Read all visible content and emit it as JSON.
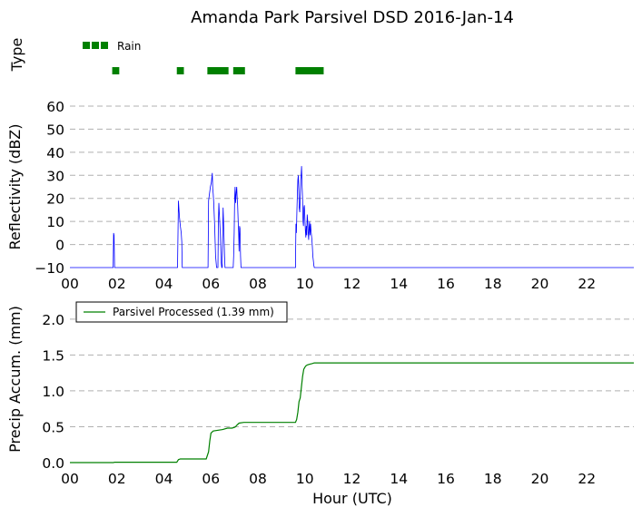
{
  "chart_data": [
    {
      "type": "scatter",
      "panel": "precip-type",
      "title": "Amanda Park Parsivel DSD 2016-Jan-14",
      "ylabel": "Type",
      "legend": [
        {
          "label": "Rain",
          "color": "#008000"
        }
      ],
      "xlim": [
        0,
        24
      ],
      "rain_segments": [
        [
          1.8,
          2.1
        ],
        [
          4.55,
          4.85
        ],
        [
          5.85,
          6.75
        ],
        [
          6.95,
          7.45
        ],
        [
          9.6,
          10.8
        ]
      ]
    },
    {
      "type": "line",
      "panel": "reflectivity",
      "ylabel": "Reflectivity (dBZ)",
      "xlim": [
        0,
        24
      ],
      "ylim": [
        -10,
        60
      ],
      "yticks": [
        -10,
        0,
        10,
        20,
        30,
        40,
        50,
        60
      ],
      "xticks": [
        "00",
        "02",
        "04",
        "06",
        "08",
        "10",
        "12",
        "14",
        "16",
        "18",
        "20",
        "22"
      ],
      "grid": true,
      "color": "#0000ff",
      "x": [
        0,
        1.84,
        1.86,
        1.88,
        1.9,
        1.92,
        4.58,
        4.62,
        4.66,
        4.7,
        4.74,
        4.76,
        4.78,
        4.8,
        5.88,
        5.9,
        5.94,
        5.98,
        6.02,
        6.06,
        6.08,
        6.1,
        6.12,
        6.16,
        6.2,
        6.24,
        6.3,
        6.32,
        6.34,
        6.36,
        6.4,
        6.44,
        6.46,
        6.48,
        6.5,
        6.52,
        6.54,
        6.56,
        6.58,
        6.6,
        6.62,
        6.64,
        6.66,
        6.68,
        6.7,
        6.72,
        6.95,
        6.97,
        6.99,
        7.01,
        7.03,
        7.05,
        7.08,
        7.1,
        7.12,
        7.14,
        7.16,
        7.18,
        7.2,
        7.22,
        7.24,
        7.26,
        7.28,
        7.3,
        7.32,
        7.34,
        9.6,
        9.62,
        9.64,
        9.66,
        9.68,
        9.7,
        9.72,
        9.74,
        9.76,
        9.78,
        9.8,
        9.82,
        9.84,
        9.86,
        9.88,
        9.9,
        9.92,
        9.94,
        9.96,
        9.98,
        10.0,
        10.02,
        10.04,
        10.06,
        10.08,
        10.1,
        10.12,
        10.14,
        10.16,
        10.18,
        10.2,
        10.22,
        10.24,
        10.26,
        10.28,
        10.3,
        10.32,
        10.34,
        10.36,
        10.38,
        10.4,
        10.42,
        10.44,
        10.46,
        10.48,
        10.5,
        10.52,
        10.54,
        10.56,
        10.58,
        10.6,
        10.62,
        10.64,
        10.66,
        10.7,
        24
      ],
      "y": [
        -10,
        -10,
        5,
        4,
        -10,
        -10,
        -10,
        19,
        12,
        8,
        5,
        1,
        -10,
        -10,
        -10,
        19,
        22,
        25,
        27,
        31,
        24,
        22,
        18,
        8,
        -5,
        -10,
        -10,
        10,
        18,
        13,
        5,
        -8,
        -10,
        -10,
        5,
        16,
        10,
        3,
        -5,
        -10,
        -10,
        -10,
        -10,
        -10,
        -10,
        -10,
        -10,
        -5,
        5,
        20,
        25,
        18,
        23,
        25,
        20,
        17,
        10,
        5,
        -3,
        8,
        7,
        -5,
        -10,
        -10,
        -10,
        -10,
        -10,
        9,
        5,
        15,
        22,
        28,
        30,
        24,
        16,
        14,
        20,
        28,
        30,
        34,
        26,
        20,
        10,
        8,
        16,
        17,
        11,
        6,
        3,
        8,
        4,
        13,
        10,
        5,
        2,
        7,
        10,
        4,
        9,
        6,
        4,
        2,
        -1,
        -5,
        -7,
        -9,
        -10,
        -10,
        -10,
        -10,
        -10,
        -10,
        -10,
        -10,
        -10,
        -10,
        -10,
        -10,
        -10,
        -10,
        -10,
        -10
      ]
    },
    {
      "type": "line",
      "panel": "precip-accumulation",
      "ylabel": "Precip Accum. (mm)",
      "xlabel": "Hour (UTC)",
      "xlim": [
        0,
        24
      ],
      "ylim": [
        0,
        2.2
      ],
      "yticks": [
        "0.0",
        "0.5",
        "1.0",
        "1.5",
        "2.0"
      ],
      "ytick_values": [
        0,
        0.5,
        1.0,
        1.5,
        2.0
      ],
      "xticks": [
        "00",
        "02",
        "04",
        "06",
        "08",
        "10",
        "12",
        "14",
        "16",
        "18",
        "20",
        "22"
      ],
      "grid": true,
      "legend_position": "upper-left",
      "series": [
        {
          "name": "Parsivel Processed (1.39 mm)",
          "color": "#008000",
          "x": [
            0,
            1.85,
            1.9,
            4.55,
            4.62,
            4.7,
            5.8,
            5.9,
            5.95,
            6.0,
            6.1,
            6.5,
            6.7,
            6.9,
            7.0,
            7.05,
            7.1,
            7.2,
            7.4,
            9.6,
            9.65,
            9.7,
            9.75,
            9.8,
            9.85,
            9.9,
            9.95,
            10.0,
            10.05,
            10.1,
            10.2,
            10.3,
            10.4,
            10.6,
            10.8,
            24
          ],
          "y": [
            0,
            0,
            0.005,
            0.005,
            0.04,
            0.05,
            0.05,
            0.15,
            0.3,
            0.41,
            0.44,
            0.46,
            0.48,
            0.48,
            0.49,
            0.5,
            0.52,
            0.55,
            0.56,
            0.56,
            0.6,
            0.7,
            0.85,
            0.9,
            1.05,
            1.2,
            1.3,
            1.33,
            1.35,
            1.36,
            1.37,
            1.38,
            1.39,
            1.39,
            1.39,
            1.39
          ]
        }
      ]
    }
  ],
  "figure": {
    "title": "Amanda Park Parsivel DSD 2016-Jan-14",
    "xlabel": "Hour (UTC)"
  }
}
